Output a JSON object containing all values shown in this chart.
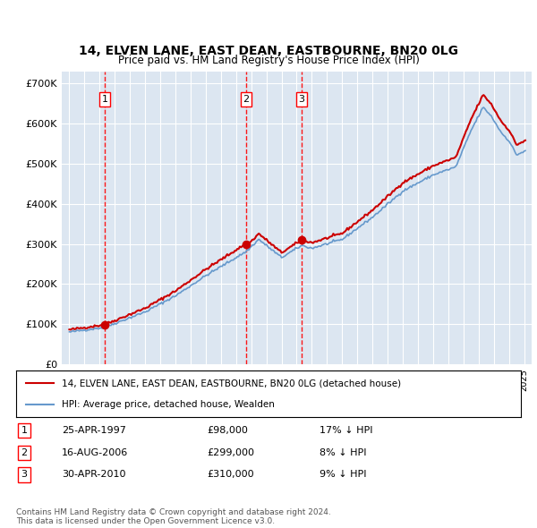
{
  "title": "14, ELVEN LANE, EAST DEAN, EASTBOURNE, BN20 0LG",
  "subtitle": "Price paid vs. HM Land Registry's House Price Index (HPI)",
  "background_color": "#dce6f1",
  "plot_bg_color": "#dce6f1",
  "sale_color": "#cc0000",
  "hpi_color": "#6699cc",
  "transaction_years": [
    1997.33,
    2006.67,
    2010.33
  ],
  "transaction_prices": [
    98000,
    299000,
    310000
  ],
  "transaction_labels": [
    "1",
    "2",
    "3"
  ],
  "legend_sale": "14, ELVEN LANE, EAST DEAN, EASTBOURNE, BN20 0LG (detached house)",
  "legend_hpi": "HPI: Average price, detached house, Wealden",
  "table_rows": [
    [
      "1",
      "25-APR-1997",
      "£98,000",
      "17% ↓ HPI"
    ],
    [
      "2",
      "16-AUG-2006",
      "£299,000",
      "8% ↓ HPI"
    ],
    [
      "3",
      "30-APR-2010",
      "£310,000",
      "9% ↓ HPI"
    ]
  ],
  "footnote": "Contains HM Land Registry data © Crown copyright and database right 2024.\nThis data is licensed under the Open Government Licence v3.0.",
  "ylim": [
    0,
    730000
  ],
  "yticks": [
    0,
    100000,
    200000,
    300000,
    400000,
    500000,
    600000,
    700000
  ],
  "ytick_labels": [
    "£0",
    "£100K",
    "£200K",
    "£300K",
    "£400K",
    "£500K",
    "£600K",
    "£700K"
  ],
  "xlim_start": 1994.5,
  "xlim_end": 2025.5,
  "xtick_start": 1995,
  "xtick_end": 2026
}
